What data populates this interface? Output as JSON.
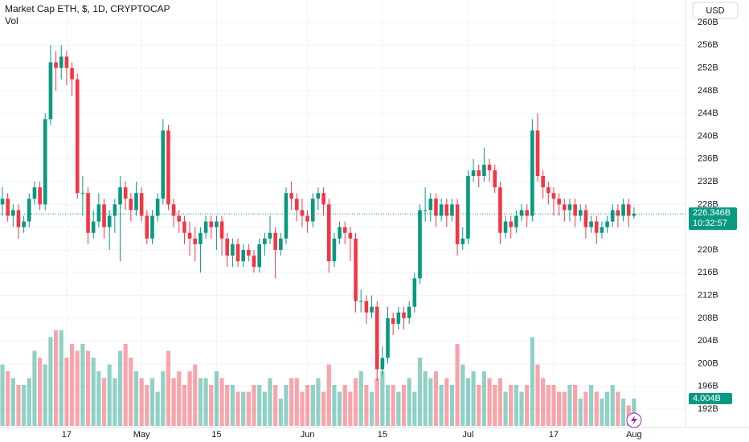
{
  "chart_data": {
    "type": "candlestick",
    "title": "Market Cap ETH, $, 1D, CRYPTOCAP",
    "volume_title": "Vol",
    "currency": "USD",
    "up_color": "#089981",
    "down_color": "#f23645",
    "ylim": [
      191,
      261.5
    ],
    "yticks": [
      {
        "value": 192,
        "label": "192B"
      },
      {
        "value": 196,
        "label": "196B"
      },
      {
        "value": 200,
        "label": "200B"
      },
      {
        "value": 204,
        "label": "204B"
      },
      {
        "value": 208,
        "label": "208B"
      },
      {
        "value": 212,
        "label": "212B"
      },
      {
        "value": 216,
        "label": "216B"
      },
      {
        "value": 220,
        "label": "220B"
      },
      {
        "value": 224,
        "label": "224B"
      },
      {
        "value": 228,
        "label": "228B"
      },
      {
        "value": 232,
        "label": "232B"
      },
      {
        "value": 236,
        "label": "236B"
      },
      {
        "value": 240,
        "label": "240B"
      },
      {
        "value": 244,
        "label": "244B"
      },
      {
        "value": 248,
        "label": "248B"
      },
      {
        "value": 252,
        "label": "252B"
      },
      {
        "value": 256,
        "label": "256B"
      },
      {
        "value": 260,
        "label": "260B"
      }
    ],
    "volume_ylim": [
      0,
      16
    ],
    "last_label": "226.346B",
    "countdown": "10:32:57",
    "volume_label": "4.004B",
    "categories": [
      null,
      null,
      null,
      null,
      null,
      null,
      null,
      null,
      null,
      null,
      null,
      null,
      "17",
      null,
      null,
      null,
      null,
      null,
      null,
      null,
      null,
      null,
      null,
      null,
      null,
      null,
      "May",
      null,
      null,
      null,
      null,
      null,
      null,
      null,
      null,
      null,
      null,
      null,
      null,
      null,
      "15",
      null,
      null,
      null,
      null,
      null,
      null,
      null,
      null,
      null,
      null,
      null,
      null,
      null,
      null,
      null,
      null,
      "Jun",
      null,
      null,
      null,
      null,
      null,
      null,
      null,
      null,
      null,
      null,
      null,
      null,
      null,
      "15",
      null,
      null,
      null,
      null,
      null,
      null,
      null,
      null,
      null,
      null,
      null,
      null,
      null,
      null,
      null,
      "Jul",
      null,
      null,
      null,
      null,
      null,
      null,
      null,
      null,
      null,
      null,
      null,
      null,
      null,
      null,
      null,
      "17",
      null,
      null,
      null,
      null,
      null,
      null,
      null,
      null,
      null,
      null,
      null,
      null,
      null,
      null,
      "Aug"
    ],
    "ohlc": [
      [
        228,
        231,
        226,
        229
      ],
      [
        229,
        230,
        225,
        226
      ],
      [
        226,
        228,
        224,
        227
      ],
      [
        227,
        228,
        222,
        224
      ],
      [
        224,
        226,
        223,
        225
      ],
      [
        225,
        230,
        224,
        229
      ],
      [
        229,
        232,
        228,
        231
      ],
      [
        231,
        232,
        227,
        228
      ],
      [
        228,
        244,
        227,
        243
      ],
      [
        243,
        256,
        242,
        253
      ],
      [
        253,
        255,
        248,
        252
      ],
      [
        252,
        256,
        250,
        254
      ],
      [
        254,
        255,
        249,
        252
      ],
      [
        252,
        253,
        247,
        250
      ],
      [
        250,
        251,
        229,
        230
      ],
      [
        230,
        233,
        226,
        230
      ],
      [
        230,
        231,
        221,
        223
      ],
      [
        223,
        227,
        222,
        225
      ],
      [
        225,
        230,
        224,
        228
      ],
      [
        228,
        229,
        222,
        224
      ],
      [
        224,
        227,
        220,
        226
      ],
      [
        226,
        229,
        223,
        228
      ],
      [
        228,
        233,
        218,
        231
      ],
      [
        231,
        232,
        227,
        229
      ],
      [
        229,
        230,
        225,
        227
      ],
      [
        227,
        232,
        226,
        230
      ],
      [
        230,
        231,
        225,
        226
      ],
      [
        226,
        227,
        221,
        222
      ],
      [
        222,
        227,
        221,
        226
      ],
      [
        226,
        230,
        225,
        229
      ],
      [
        229,
        243,
        228,
        241
      ],
      [
        241,
        242,
        227,
        228
      ],
      [
        228,
        229,
        224,
        226
      ],
      [
        226,
        227,
        223,
        225
      ],
      [
        225,
        226,
        221,
        223
      ],
      [
        223,
        225,
        219,
        222
      ],
      [
        222,
        224,
        218,
        221
      ],
      [
        221,
        224,
        216,
        223
      ],
      [
        223,
        226,
        222,
        225
      ],
      [
        225,
        226,
        222,
        224
      ],
      [
        224,
        226,
        220,
        225
      ],
      [
        225,
        226,
        219,
        222
      ],
      [
        222,
        223,
        217,
        219
      ],
      [
        219,
        222,
        217,
        221
      ],
      [
        221,
        222,
        217,
        218
      ],
      [
        218,
        221,
        217,
        220
      ],
      [
        220,
        221,
        218,
        219
      ],
      [
        219,
        220,
        216,
        217
      ],
      [
        217,
        222,
        216,
        221
      ],
      [
        221,
        223,
        219,
        222
      ],
      [
        222,
        226,
        221,
        223
      ],
      [
        223,
        224,
        215,
        220
      ],
      [
        220,
        223,
        219,
        222
      ],
      [
        222,
        231,
        221,
        230
      ],
      [
        230,
        232,
        227,
        229
      ],
      [
        229,
        230,
        225,
        227
      ],
      [
        227,
        229,
        224,
        226
      ],
      [
        226,
        227,
        223,
        225
      ],
      [
        225,
        230,
        224,
        229
      ],
      [
        229,
        231,
        227,
        230
      ],
      [
        230,
        231,
        226,
        228
      ],
      [
        228,
        229,
        216,
        218
      ],
      [
        218,
        223,
        217,
        222
      ],
      [
        222,
        225,
        221,
        224
      ],
      [
        224,
        225,
        221,
        223
      ],
      [
        223,
        224,
        218,
        222
      ],
      [
        222,
        223,
        209,
        211
      ],
      [
        211,
        213,
        209,
        211
      ],
      [
        211,
        212,
        207,
        209
      ],
      [
        209,
        212,
        208,
        210
      ],
      [
        210,
        211,
        197,
        199
      ],
      [
        199,
        203,
        198,
        201
      ],
      [
        201,
        210,
        200,
        208
      ],
      [
        208,
        209,
        205,
        207
      ],
      [
        207,
        210,
        206,
        209
      ],
      [
        209,
        210,
        206,
        208
      ],
      [
        208,
        211,
        207,
        210
      ],
      [
        210,
        216,
        209,
        215
      ],
      [
        215,
        228,
        214,
        227
      ],
      [
        227,
        231,
        225,
        227
      ],
      [
        227,
        230,
        225,
        229
      ],
      [
        229,
        230,
        224,
        226
      ],
      [
        226,
        229,
        225,
        228
      ],
      [
        228,
        229,
        224,
        226
      ],
      [
        226,
        229,
        225,
        228
      ],
      [
        228,
        229,
        219,
        221
      ],
      [
        221,
        224,
        220,
        222
      ],
      [
        222,
        234,
        221,
        233
      ],
      [
        233,
        236,
        232,
        234
      ],
      [
        234,
        235,
        231,
        233
      ],
      [
        233,
        238,
        232,
        235
      ],
      [
        235,
        236,
        232,
        234
      ],
      [
        234,
        235,
        230,
        231
      ],
      [
        231,
        232,
        221,
        223
      ],
      [
        223,
        226,
        222,
        225
      ],
      [
        225,
        226,
        222,
        224
      ],
      [
        224,
        227,
        223,
        226
      ],
      [
        226,
        228,
        225,
        227
      ],
      [
        227,
        228,
        224,
        226
      ],
      [
        226,
        243,
        225,
        241
      ],
      [
        241,
        244,
        232,
        233
      ],
      [
        233,
        234,
        229,
        231
      ],
      [
        231,
        232,
        228,
        230
      ],
      [
        230,
        231,
        226,
        229
      ],
      [
        229,
        230,
        226,
        228
      ],
      [
        228,
        229,
        225,
        227
      ],
      [
        227,
        229,
        225,
        228
      ],
      [
        228,
        229,
        224,
        226
      ],
      [
        226,
        228,
        225,
        227
      ],
      [
        227,
        228,
        222,
        224
      ],
      [
        224,
        226,
        223,
        225
      ],
      [
        225,
        226,
        221,
        223
      ],
      [
        223,
        225,
        222,
        224
      ],
      [
        224,
        226,
        223,
        225
      ],
      [
        225,
        228,
        224,
        227
      ],
      [
        227,
        228,
        224,
        226
      ],
      [
        226,
        229,
        225,
        228
      ],
      [
        228,
        229,
        224,
        226
      ],
      [
        226,
        227.5,
        225.5,
        226.346
      ]
    ],
    "volume": [
      9,
      8,
      7,
      6,
      6,
      7,
      11,
      10,
      9,
      13,
      14,
      14,
      10,
      12,
      11,
      12,
      11,
      10,
      8,
      7,
      9,
      7,
      11,
      12,
      10,
      8,
      7,
      6,
      7,
      5,
      8,
      11,
      7,
      8,
      6,
      8,
      9,
      7,
      7,
      6,
      8,
      7,
      6,
      6,
      5,
      5,
      5,
      6,
      6,
      5,
      7,
      6,
      4,
      6,
      7,
      7,
      5,
      6,
      6,
      7,
      5,
      9,
      6,
      5,
      6,
      5,
      7,
      8,
      6,
      5,
      7,
      8,
      6,
      6,
      5,
      6,
      7,
      5,
      10,
      8,
      7,
      8,
      6,
      7,
      6,
      12,
      9,
      7,
      8,
      6,
      8,
      7,
      6,
      7,
      5,
      6,
      6,
      5,
      6,
      13,
      9,
      7,
      6,
      6,
      5,
      5,
      6,
      6,
      4,
      5,
      6,
      5,
      4,
      5,
      6,
      5,
      4,
      3,
      4.004
    ]
  }
}
